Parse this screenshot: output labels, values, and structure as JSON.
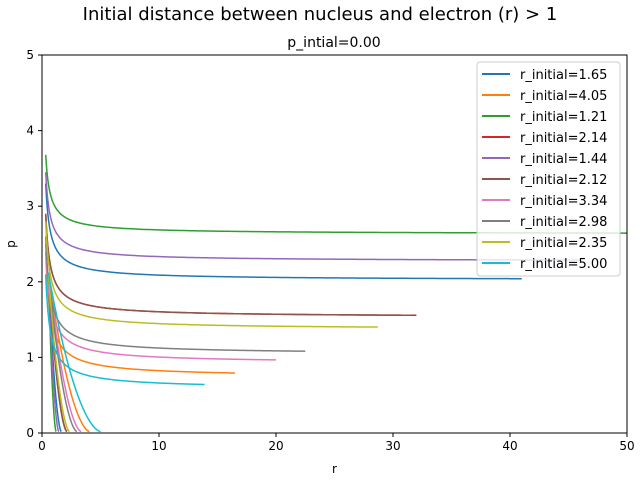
{
  "chart_data": {
    "type": "line",
    "title": "Initial distance between nucleus and electron (r) > 1",
    "subtitle": "p_intial=0.00",
    "xlabel": "r",
    "ylabel": "p",
    "xlim": [
      0,
      50
    ],
    "ylim": [
      0,
      5
    ],
    "xticks": [
      "0",
      "10",
      "20",
      "30",
      "40",
      "50"
    ],
    "yticks": [
      "0",
      "1",
      "2",
      "3",
      "4",
      "5"
    ],
    "grid": false,
    "legend_position": "top-right",
    "series": [
      {
        "name": "r_initial=1.65",
        "color": "#1f77b4",
        "p_inf": 2.02,
        "r_end": 41.0,
        "p_max": 3.3
      },
      {
        "name": "r_initial=4.05",
        "color": "#ff7f0e",
        "p_inf": 0.735,
        "r_end": 16.5,
        "p_max": 2.4
      },
      {
        "name": "r_initial=1.21",
        "color": "#2ca02c",
        "p_inf": 2.63,
        "r_end": 50.0,
        "p_max": 3.68
      },
      {
        "name": "r_initial=2.14",
        "color": "#d62728",
        "p_inf": 1.53,
        "r_end": 32.0,
        "p_max": 2.9
      },
      {
        "name": "r_initial=1.44",
        "color": "#9467bd",
        "p_inf": 2.27,
        "r_end": 46.0,
        "p_max": 3.45
      },
      {
        "name": "r_initial=2.12",
        "color": "#8c564b",
        "p_inf": 1.53,
        "r_end": 31.5,
        "p_max": 2.9
      },
      {
        "name": "r_initial=3.34",
        "color": "#e377c2",
        "p_inf": 0.92,
        "r_end": 20.0,
        "p_max": 2.5
      },
      {
        "name": "r_initial=2.98",
        "color": "#7f7f7f",
        "p_inf": 1.04,
        "r_end": 22.5,
        "p_max": 2.6
      },
      {
        "name": "r_initial=2.35",
        "color": "#bcbd22",
        "p_inf": 1.37,
        "r_end": 28.7,
        "p_max": 2.8
      },
      {
        "name": "r_initial=5.00",
        "color": "#17becf",
        "p_inf": 0.58,
        "r_end": 13.9,
        "p_max": 2.1
      }
    ]
  }
}
